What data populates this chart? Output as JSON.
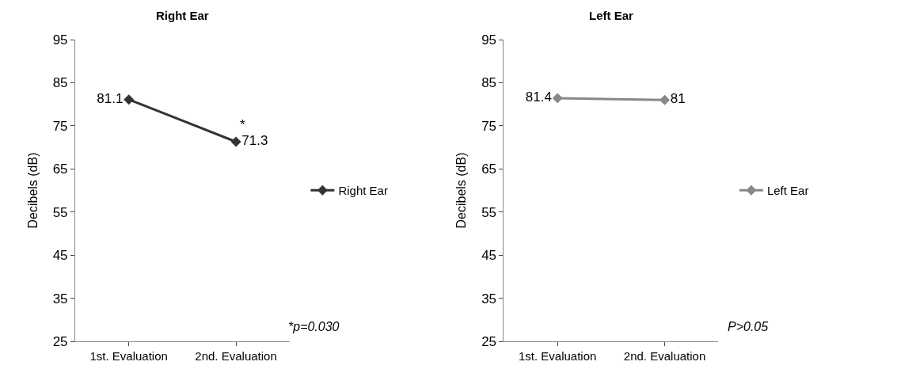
{
  "chart_data": [
    {
      "type": "line",
      "title": "Right Ear",
      "ylabel": "Decibels (dB)",
      "categories": [
        "1st. Evaluation",
        "2nd. Evaluation"
      ],
      "series": [
        {
          "name": "Right Ear",
          "color": "#333333",
          "values": [
            81.1,
            71.3
          ]
        }
      ],
      "ylim": [
        25,
        95
      ],
      "yticks": [
        25,
        35,
        45,
        55,
        65,
        75,
        85,
        95
      ],
      "legend": "right",
      "marker": "diamond",
      "line_style": "solid",
      "data_labels": true,
      "annotations": [
        {
          "text": "*",
          "x": "2nd. Evaluation",
          "y": 71.3
        },
        "*p=0.030"
      ]
    },
    {
      "type": "line",
      "title": "Left Ear",
      "ylabel": "Decibels (dB)",
      "categories": [
        "1st. Evaluation",
        "2nd. Evaluation"
      ],
      "series": [
        {
          "name": "Left Ear",
          "color": "#888888",
          "values": [
            81.4,
            81
          ]
        }
      ],
      "ylim": [
        25,
        95
      ],
      "yticks": [
        25,
        35,
        45,
        55,
        65,
        75,
        85,
        95
      ],
      "legend": "right",
      "marker": "diamond",
      "line_style": "solid",
      "data_labels": true,
      "annotations": [
        "P>0.05"
      ]
    }
  ]
}
